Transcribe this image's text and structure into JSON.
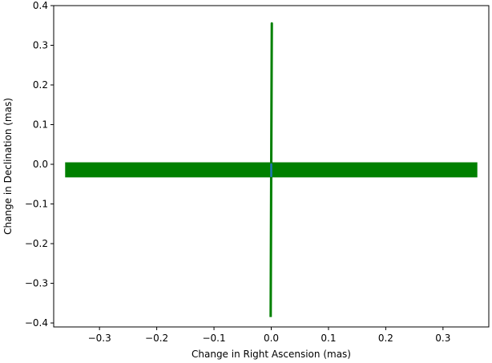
{
  "chart_data": {
    "type": "line",
    "title": "",
    "xlabel": "Change in Right Ascension (mas)",
    "ylabel": "Change in Declination (mas)",
    "xlim": [
      -0.38,
      0.38
    ],
    "ylim": [
      -0.41,
      0.4
    ],
    "x_ticks": [
      -0.3,
      -0.2,
      -0.1,
      0.0,
      0.1,
      0.2,
      0.3
    ],
    "x_tick_labels": [
      "−0.3",
      "−0.2",
      "−0.1",
      "0.0",
      "0.1",
      "0.2",
      "0.3"
    ],
    "y_ticks": [
      -0.4,
      -0.3,
      -0.2,
      -0.1,
      0.0,
      0.1,
      0.2,
      0.3,
      0.4
    ],
    "y_tick_labels": [
      "−0.4",
      "−0.3",
      "−0.2",
      "−0.1",
      "0.0",
      "0.1",
      "0.2",
      "0.3",
      "0.4"
    ],
    "grid": false,
    "legend": "none",
    "series": [
      {
        "color": "#008000",
        "shape": "band",
        "x": [
          -0.36,
          0.36
        ],
        "y_top": [
          0.005,
          0.005
        ],
        "y_bottom": [
          -0.033,
          -0.033
        ]
      },
      {
        "color": "#008000",
        "shape": "line",
        "x": [
          0.001,
          0.0,
          -0.001,
          0.001
        ],
        "y": [
          0.355,
          0.0,
          -0.385,
          0.355
        ]
      },
      {
        "color": "#1f77b4",
        "shape": "line",
        "x": [
          0.0,
          0.0
        ],
        "y": [
          0.0,
          -0.03
        ]
      }
    ]
  }
}
